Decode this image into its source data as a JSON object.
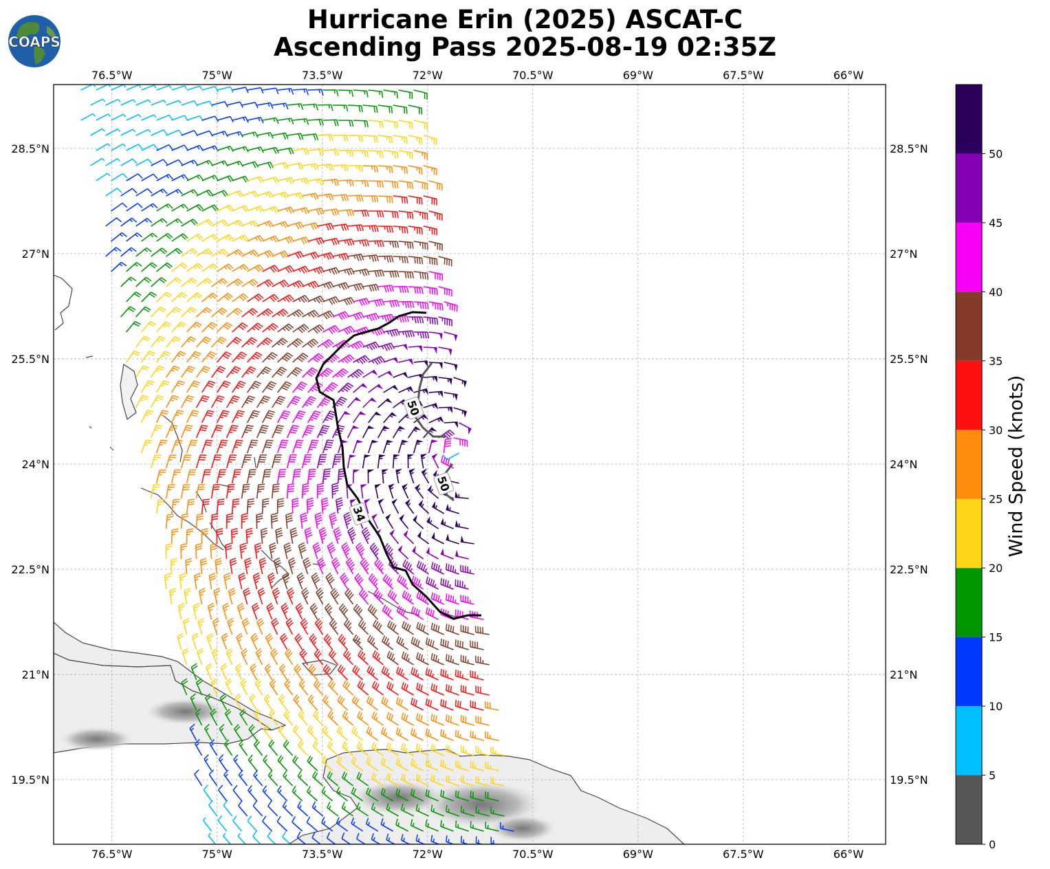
{
  "title_line1": "Hurricane Erin (2025) ASCAT-C",
  "title_line2": "Ascending Pass 2025-08-19 02:35Z",
  "logo_text": "COAPS",
  "map": {
    "lon_ticks": [
      "76.5°W",
      "75°W",
      "73.5°W",
      "72°W",
      "70.5°W",
      "69°W",
      "67.5°W",
      "66°W"
    ],
    "lon_values": [
      -76.5,
      -75,
      -73.5,
      -72,
      -70.5,
      -69,
      -67.5,
      -66
    ],
    "lat_ticks": [
      "28.5°N",
      "27°N",
      "25.5°N",
      "24°N",
      "22.5°N",
      "21°N",
      "19.5°N"
    ],
    "lat_values": [
      28.5,
      27,
      25.5,
      24,
      22.5,
      21,
      19.5
    ],
    "lon_range": [
      -77.33,
      -65.47
    ],
    "lat_range": [
      18.58,
      29.41
    ],
    "grid": true,
    "center": {
      "lon": -71.6,
      "lat": 24.2
    },
    "contours": [
      {
        "label": "34",
        "color": "#000000",
        "label_lon": -72.97,
        "label_lat": 23.29
      },
      {
        "label": "50",
        "color": "#555555",
        "label_lon": -72.2,
        "label_lat": 24.8
      },
      {
        "label": "50",
        "color": "#555555",
        "label_lon": -71.77,
        "label_lat": 23.72
      }
    ]
  },
  "colorbar": {
    "title": "Wind Speed (knots)",
    "tick_labels": [
      "0",
      "5",
      "10",
      "15",
      "20",
      "25",
      "30",
      "35",
      "40",
      "45",
      "50"
    ],
    "bins": [
      {
        "min": 0,
        "max": 5,
        "color": "#575757"
      },
      {
        "min": 5,
        "max": 10,
        "color": "#00bfff"
      },
      {
        "min": 10,
        "max": 15,
        "color": "#0038ff"
      },
      {
        "min": 15,
        "max": 20,
        "color": "#009600"
      },
      {
        "min": 20,
        "max": 25,
        "color": "#ffd515"
      },
      {
        "min": 25,
        "max": 30,
        "color": "#ff8c0a"
      },
      {
        "min": 30,
        "max": 35,
        "color": "#ff1010"
      },
      {
        "min": 35,
        "max": 40,
        "color": "#833b28"
      },
      {
        "min": 40,
        "max": 45,
        "color": "#f800f5"
      },
      {
        "min": 45,
        "max": 50,
        "color": "#8500b5"
      },
      {
        "min": 50,
        "max": 55,
        "color": "#2b005c"
      }
    ]
  }
}
